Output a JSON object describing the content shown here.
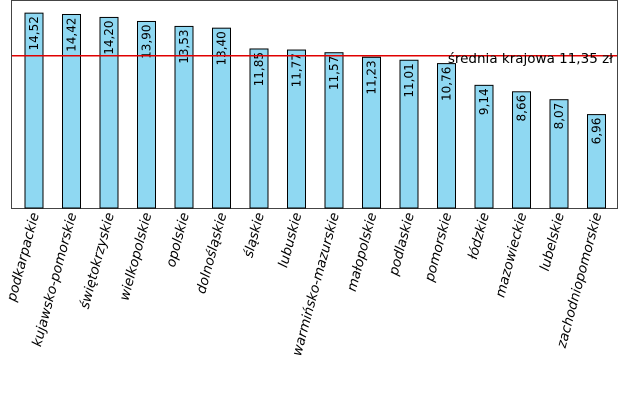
{
  "chart_data": {
    "type": "bar",
    "categories": [
      "podkarpackie",
      "kujawsko-pomorskie",
      "świętokrzyskie",
      "wielkopolskie",
      "opolskie",
      "dolnośląskie",
      "śląskie",
      "lubuskie",
      "warmińsko-mazurskie",
      "małopolskie",
      "podlaskie",
      "pomorskie",
      "łódzkie",
      "mazowieckie",
      "lubelskie",
      "zachodniopomorskie"
    ],
    "values": [
      14.52,
      14.42,
      14.2,
      13.9,
      13.53,
      13.4,
      11.85,
      11.77,
      11.57,
      11.23,
      11.01,
      10.76,
      9.14,
      8.66,
      8.07,
      6.96
    ],
    "value_labels": [
      "14,52",
      "14,42",
      "14,20",
      "13,90",
      "13,53",
      "13,40",
      "11,85",
      "11,77",
      "11,57",
      "11,23",
      "11,01",
      "10,76",
      "9,14",
      "8,66",
      "8,07",
      "6,96"
    ],
    "reference_line": {
      "value": 11.35,
      "label": "średnia krajowa 11,35 zł",
      "color": "#e00000"
    },
    "bar_color": "#8fd8f2",
    "ylim": [
      0,
      15.5
    ],
    "grid": false,
    "title": "",
    "xlabel": "",
    "ylabel": ""
  }
}
